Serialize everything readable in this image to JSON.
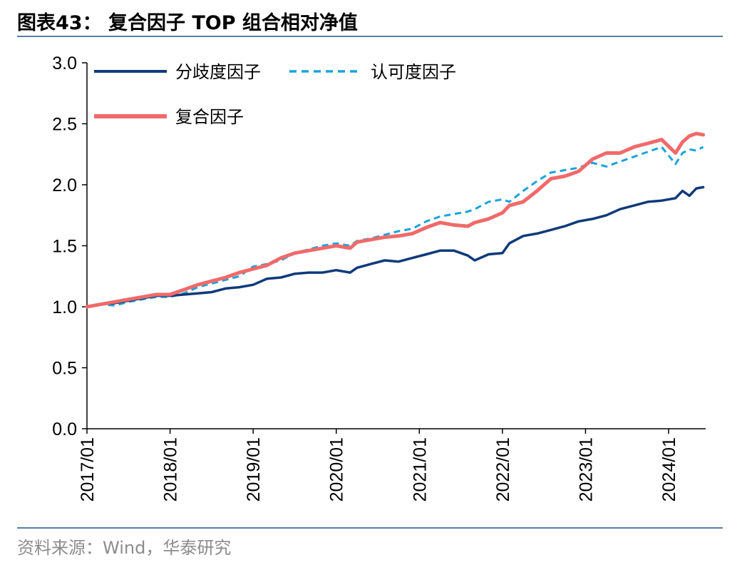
{
  "header": {
    "title": "图表43：  复合因子 TOP 组合相对净值"
  },
  "footer": {
    "source": "资料来源：Wind，华泰研究"
  },
  "chart_data": {
    "type": "line",
    "xlabel": "",
    "ylabel": "",
    "ylim": [
      0,
      3.0
    ],
    "xlim": [
      "2017/01",
      "2024/06"
    ],
    "yticks": [
      "0.0",
      "0.5",
      "1.0",
      "1.5",
      "2.0",
      "2.5",
      "3.0"
    ],
    "xticks": [
      "2017/01",
      "2018/01",
      "2019/01",
      "2020/01",
      "2021/01",
      "2022/01",
      "2023/01",
      "2024/01"
    ],
    "grid": false,
    "legend_position": "top-left",
    "series": [
      {
        "name": "分歧度因子",
        "color": "#0f3a7a",
        "style": "solid",
        "points": [
          [
            "2017/01",
            1.0
          ],
          [
            "2017/03",
            1.02
          ],
          [
            "2017/05",
            1.03
          ],
          [
            "2017/07",
            1.05
          ],
          [
            "2017/09",
            1.07
          ],
          [
            "2017/11",
            1.09
          ],
          [
            "2018/01",
            1.09
          ],
          [
            "2018/03",
            1.1
          ],
          [
            "2018/05",
            1.11
          ],
          [
            "2018/07",
            1.12
          ],
          [
            "2018/09",
            1.15
          ],
          [
            "2018/11",
            1.16
          ],
          [
            "2019/01",
            1.18
          ],
          [
            "2019/03",
            1.23
          ],
          [
            "2019/05",
            1.24
          ],
          [
            "2019/07",
            1.27
          ],
          [
            "2019/09",
            1.28
          ],
          [
            "2019/11",
            1.28
          ],
          [
            "2020/01",
            1.3
          ],
          [
            "2020/03",
            1.28
          ],
          [
            "2020/04",
            1.32
          ],
          [
            "2020/06",
            1.35
          ],
          [
            "2020/08",
            1.38
          ],
          [
            "2020/10",
            1.37
          ],
          [
            "2020/12",
            1.4
          ],
          [
            "2021/02",
            1.43
          ],
          [
            "2021/04",
            1.46
          ],
          [
            "2021/06",
            1.46
          ],
          [
            "2021/08",
            1.42
          ],
          [
            "2021/09",
            1.38
          ],
          [
            "2021/11",
            1.43
          ],
          [
            "2022/01",
            1.44
          ],
          [
            "2022/02",
            1.52
          ],
          [
            "2022/04",
            1.58
          ],
          [
            "2022/06",
            1.6
          ],
          [
            "2022/08",
            1.63
          ],
          [
            "2022/10",
            1.66
          ],
          [
            "2022/12",
            1.7
          ],
          [
            "2023/02",
            1.72
          ],
          [
            "2023/04",
            1.75
          ],
          [
            "2023/06",
            1.8
          ],
          [
            "2023/08",
            1.83
          ],
          [
            "2023/10",
            1.86
          ],
          [
            "2023/12",
            1.87
          ],
          [
            "2024/02",
            1.89
          ],
          [
            "2024/03",
            1.95
          ],
          [
            "2024/04",
            1.91
          ],
          [
            "2024/05",
            1.97
          ],
          [
            "2024/06",
            1.98
          ]
        ]
      },
      {
        "name": "认可度因子",
        "color": "#1aa3dc",
        "style": "dashed",
        "points": [
          [
            "2017/01",
            1.0
          ],
          [
            "2017/03",
            1.02
          ],
          [
            "2017/05",
            1.01
          ],
          [
            "2017/07",
            1.04
          ],
          [
            "2017/09",
            1.06
          ],
          [
            "2017/11",
            1.08
          ],
          [
            "2018/01",
            1.08
          ],
          [
            "2018/03",
            1.11
          ],
          [
            "2018/05",
            1.16
          ],
          [
            "2018/07",
            1.19
          ],
          [
            "2018/09",
            1.22
          ],
          [
            "2018/11",
            1.25
          ],
          [
            "2019/01",
            1.33
          ],
          [
            "2019/03",
            1.35
          ],
          [
            "2019/05",
            1.38
          ],
          [
            "2019/07",
            1.44
          ],
          [
            "2019/09",
            1.47
          ],
          [
            "2019/11",
            1.5
          ],
          [
            "2020/01",
            1.52
          ],
          [
            "2020/03",
            1.5
          ],
          [
            "2020/04",
            1.54
          ],
          [
            "2020/06",
            1.56
          ],
          [
            "2020/08",
            1.59
          ],
          [
            "2020/10",
            1.62
          ],
          [
            "2020/12",
            1.64
          ],
          [
            "2021/02",
            1.7
          ],
          [
            "2021/04",
            1.74
          ],
          [
            "2021/06",
            1.76
          ],
          [
            "2021/08",
            1.78
          ],
          [
            "2021/09",
            1.8
          ],
          [
            "2021/11",
            1.86
          ],
          [
            "2022/01",
            1.88
          ],
          [
            "2022/02",
            1.86
          ],
          [
            "2022/04",
            1.95
          ],
          [
            "2022/06",
            2.03
          ],
          [
            "2022/08",
            2.1
          ],
          [
            "2022/10",
            2.12
          ],
          [
            "2022/12",
            2.14
          ],
          [
            "2023/02",
            2.18
          ],
          [
            "2023/04",
            2.15
          ],
          [
            "2023/06",
            2.19
          ],
          [
            "2023/08",
            2.23
          ],
          [
            "2023/10",
            2.27
          ],
          [
            "2023/12",
            2.31
          ],
          [
            "2024/02",
            2.17
          ],
          [
            "2024/03",
            2.26
          ],
          [
            "2024/04",
            2.29
          ],
          [
            "2024/05",
            2.28
          ],
          [
            "2024/06",
            2.31
          ]
        ]
      },
      {
        "name": "复合因子",
        "color": "#f06a6a",
        "style": "solid",
        "points": [
          [
            "2017/01",
            1.0
          ],
          [
            "2017/03",
            1.02
          ],
          [
            "2017/05",
            1.04
          ],
          [
            "2017/07",
            1.06
          ],
          [
            "2017/09",
            1.08
          ],
          [
            "2017/11",
            1.1
          ],
          [
            "2018/01",
            1.1
          ],
          [
            "2018/03",
            1.14
          ],
          [
            "2018/05",
            1.18
          ],
          [
            "2018/07",
            1.21
          ],
          [
            "2018/09",
            1.24
          ],
          [
            "2018/11",
            1.28
          ],
          [
            "2019/01",
            1.31
          ],
          [
            "2019/03",
            1.34
          ],
          [
            "2019/05",
            1.4
          ],
          [
            "2019/07",
            1.44
          ],
          [
            "2019/09",
            1.46
          ],
          [
            "2019/11",
            1.48
          ],
          [
            "2020/01",
            1.5
          ],
          [
            "2020/03",
            1.48
          ],
          [
            "2020/04",
            1.53
          ],
          [
            "2020/06",
            1.55
          ],
          [
            "2020/08",
            1.57
          ],
          [
            "2020/10",
            1.58
          ],
          [
            "2020/12",
            1.6
          ],
          [
            "2021/02",
            1.65
          ],
          [
            "2021/04",
            1.69
          ],
          [
            "2021/06",
            1.67
          ],
          [
            "2021/08",
            1.66
          ],
          [
            "2021/09",
            1.69
          ],
          [
            "2021/11",
            1.72
          ],
          [
            "2022/01",
            1.77
          ],
          [
            "2022/02",
            1.83
          ],
          [
            "2022/04",
            1.86
          ],
          [
            "2022/06",
            1.95
          ],
          [
            "2022/08",
            2.05
          ],
          [
            "2022/10",
            2.07
          ],
          [
            "2022/12",
            2.11
          ],
          [
            "2023/02",
            2.21
          ],
          [
            "2023/04",
            2.26
          ],
          [
            "2023/06",
            2.26
          ],
          [
            "2023/08",
            2.31
          ],
          [
            "2023/10",
            2.34
          ],
          [
            "2023/12",
            2.37
          ],
          [
            "2024/02",
            2.26
          ],
          [
            "2024/03",
            2.35
          ],
          [
            "2024/04",
            2.4
          ],
          [
            "2024/05",
            2.42
          ],
          [
            "2024/06",
            2.41
          ]
        ]
      }
    ]
  }
}
